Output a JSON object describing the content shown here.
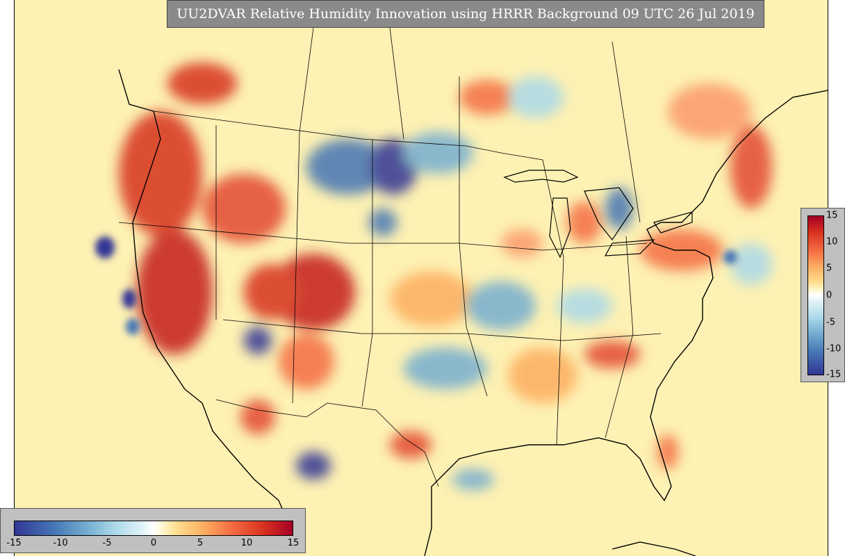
{
  "title": "UU2DVAR Relative Humidity Innovation using HRRR Background 09 UTC 26 Jul 2019",
  "colorbar_vertical": {
    "ticks": [
      "15",
      "10",
      "5",
      "0",
      "-5",
      "-10",
      "-15"
    ]
  },
  "colorbar_horizontal": {
    "ticks": [
      "-15",
      "-10",
      "-5",
      "0",
      "5",
      "10",
      "15"
    ]
  },
  "colors": {
    "background_field": "#fdf1b3",
    "positive_max": "#a50026",
    "negative_max": "#313695",
    "title_box": "#8a8a8a"
  }
}
